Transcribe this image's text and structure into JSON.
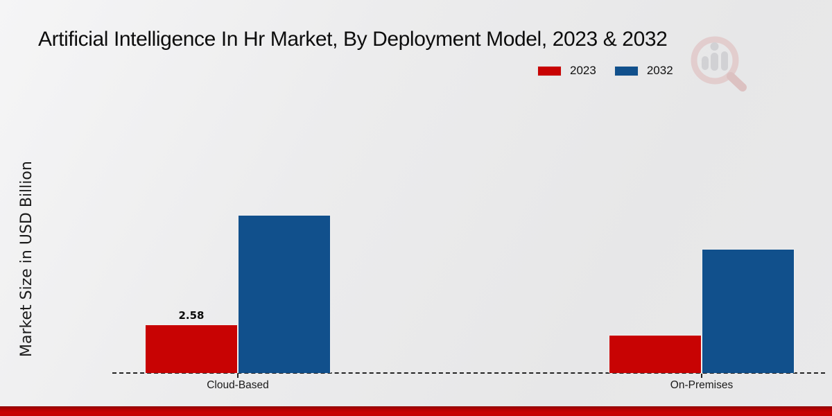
{
  "title": "Artificial Intelligence In Hr Market, By Deployment Model, 2023 & 2032",
  "ylabel": "Market Size in USD Billion",
  "legend": {
    "items": [
      {
        "label": "2023",
        "color": "#c80303"
      },
      {
        "label": "2032",
        "color": "#11508c"
      }
    ]
  },
  "chart_data": {
    "type": "bar",
    "title": "Artificial Intelligence In Hr Market, By Deployment Model, 2023 & 2032",
    "categories": [
      "Cloud-Based",
      "On-Premises"
    ],
    "series": [
      {
        "name": "2023",
        "color": "#c80303",
        "values": [
          2.58,
          2.03
        ]
      },
      {
        "name": "2032",
        "color": "#11508c",
        "values": [
          8.4,
          6.6
        ]
      }
    ],
    "value_labels": [
      [
        "2.58",
        ""
      ],
      [
        "",
        ""
      ]
    ],
    "xlabel": "",
    "ylabel": "Market Size in USD Billion",
    "ylim": [
      0,
      9
    ],
    "grid": false,
    "legend_position": "top-right",
    "baseline_style": "dashed"
  },
  "watermark": {
    "name": "market-research-logo"
  },
  "colors": {
    "background": "#ebebec",
    "axis_line": "#222222",
    "text": "#111111",
    "bottom_stripe": "#c30202"
  }
}
